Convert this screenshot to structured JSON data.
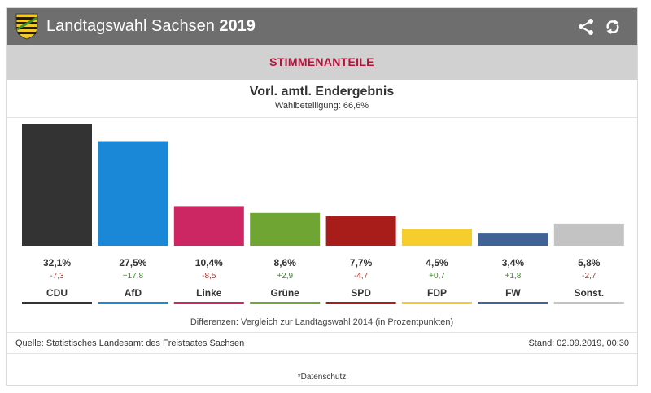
{
  "header": {
    "title": "Landtagswahl Sachsen",
    "year": "2019",
    "crest_icon": "saxony-coat-of-arms",
    "share_icon": "share-icon",
    "refresh_icon": "refresh-icon",
    "background": "#6e6e6e"
  },
  "tab": {
    "label": "STIMMENANTEILE",
    "color": "#b5123a"
  },
  "result": {
    "title": "Vorl. amtl. Endergebnis",
    "turnout": "Wahlbeteiligung: 66,6%"
  },
  "chart_data": {
    "type": "bar",
    "categories": [
      "CDU",
      "AfD",
      "Linke",
      "Grüne",
      "SPD",
      "FDP",
      "FW",
      "Sonst."
    ],
    "values": [
      32.1,
      27.5,
      10.4,
      8.6,
      7.7,
      4.5,
      3.4,
      5.8
    ],
    "value_labels": [
      "32,1%",
      "27,5%",
      "10,4%",
      "8,6%",
      "7,7%",
      "4,5%",
      "3,4%",
      "5,8%"
    ],
    "diffs": [
      -7.3,
      17.8,
      -8.5,
      2.9,
      -4.7,
      0.7,
      1.8,
      -2.7
    ],
    "diff_labels": [
      "-7,3",
      "+17,8",
      "-8,5",
      "+2,9",
      "-4,7",
      "+0,7",
      "+1,8",
      "-2,7"
    ],
    "colors": [
      "#333333",
      "#1a87d7",
      "#cc2763",
      "#6fa533",
      "#a81c1a",
      "#f5ce2d",
      "#3f6394",
      "#c3c3c3"
    ],
    "diff_colors": {
      "positive": "#3c8a25",
      "negative": "#c0302a"
    },
    "ylim": [
      0,
      32.1
    ],
    "grid": false
  },
  "footer": {
    "note": "Differenzen: Vergleich zur Landtagswahl 2014 (in Prozentpunkten)",
    "source": "Quelle: Statistisches Landesamt des Freistaates Sachsen",
    "stand": "Stand: 02.09.2019, 00:30",
    "privacy": "*Datenschutz"
  }
}
